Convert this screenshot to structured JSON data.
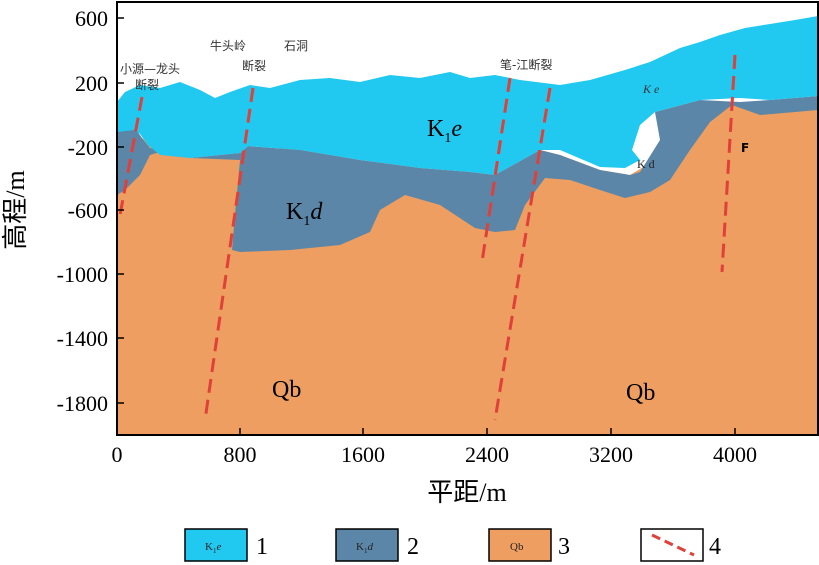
{
  "axes": {
    "x_title": "平距/m",
    "y_title": "高程/m",
    "x_ticks": [
      "0",
      "800",
      "1600",
      "2400",
      "3200",
      "4000"
    ],
    "y_ticks": [
      "600",
      "200",
      "-200",
      "-600",
      "-1000",
      "-1400",
      "-1800"
    ]
  },
  "units": {
    "k1e": {
      "main": "K",
      "sub": "1",
      "ital": "e"
    },
    "k1d": {
      "main": "K",
      "sub": "1",
      "ital": "d"
    },
    "k1e_small": "K e",
    "k1d_small": "K d",
    "qb_left": "Qb",
    "qb_right": "Qb"
  },
  "faults": {
    "f1_line1": "小源—龙头",
    "f1_line2": "断裂",
    "f2_line1": "牛头岭",
    "f2_line2": "断裂",
    "f3": "石洞",
    "f4": "笔-江断裂",
    "f5": "F"
  },
  "legend": {
    "items": [
      {
        "symbol_main": "K",
        "symbol_sub": "1",
        "symbol_ital": "e",
        "number": "1",
        "color": "#21c8f0"
      },
      {
        "symbol_main": "K",
        "symbol_sub": "1",
        "symbol_ital": "d",
        "number": "2",
        "color": "#5b86a7"
      },
      {
        "symbol_main": "Qb",
        "symbol_sub": "",
        "symbol_ital": "",
        "number": "3",
        "color": "#ee9e60"
      },
      {
        "symbol_main": "",
        "symbol_sub": "",
        "symbol_ital": "",
        "number": "4",
        "color": "#e0403a"
      }
    ]
  },
  "colors": {
    "cyan": "#21c8f0",
    "slate": "#5b86a7",
    "orange": "#ee9e60",
    "fault": "#e0403a"
  }
}
